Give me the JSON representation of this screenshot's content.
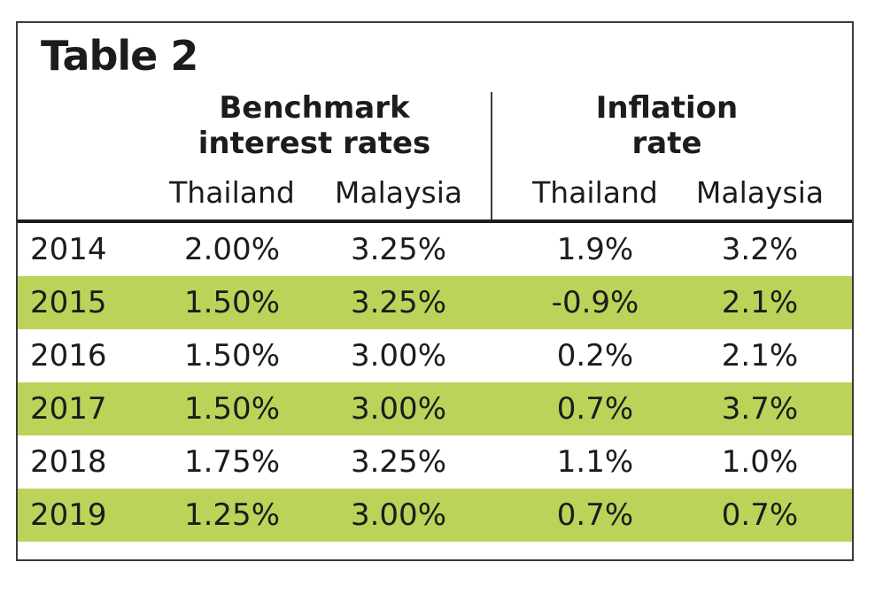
{
  "title": "Table 2",
  "groups": {
    "benchmark": {
      "line1": "Benchmark",
      "line2": "interest rates"
    },
    "inflation": {
      "line1": "Inflation",
      "line2": "rate"
    }
  },
  "columns": {
    "bench_thailand": "Thailand",
    "bench_malaysia": "Malaysia",
    "infl_thailand": "Thailand",
    "infl_malaysia": "Malaysia"
  },
  "rows": [
    {
      "year": "2014",
      "bench_th": "2.00%",
      "bench_my": "3.25%",
      "infl_th": "1.9%",
      "infl_my": "3.2%"
    },
    {
      "year": "2015",
      "bench_th": "1.50%",
      "bench_my": "3.25%",
      "infl_th": "-0.9%",
      "infl_my": "2.1%"
    },
    {
      "year": "2016",
      "bench_th": "1.50%",
      "bench_my": "3.00%",
      "infl_th": "0.2%",
      "infl_my": "2.1%"
    },
    {
      "year": "2017",
      "bench_th": "1.50%",
      "bench_my": "3.00%",
      "infl_th": "0.7%",
      "infl_my": "3.7%"
    },
    {
      "year": "2018",
      "bench_th": "1.75%",
      "bench_my": "3.25%",
      "infl_th": "1.1%",
      "infl_my": "1.0%"
    },
    {
      "year": "2019",
      "bench_th": "1.25%",
      "bench_my": "3.00%",
      "infl_th": "0.7%",
      "infl_my": "0.7%"
    }
  ],
  "colors": {
    "row_shade": "#bcd35a",
    "border": "#3a3a3a",
    "text": "#1c1c1c"
  }
}
